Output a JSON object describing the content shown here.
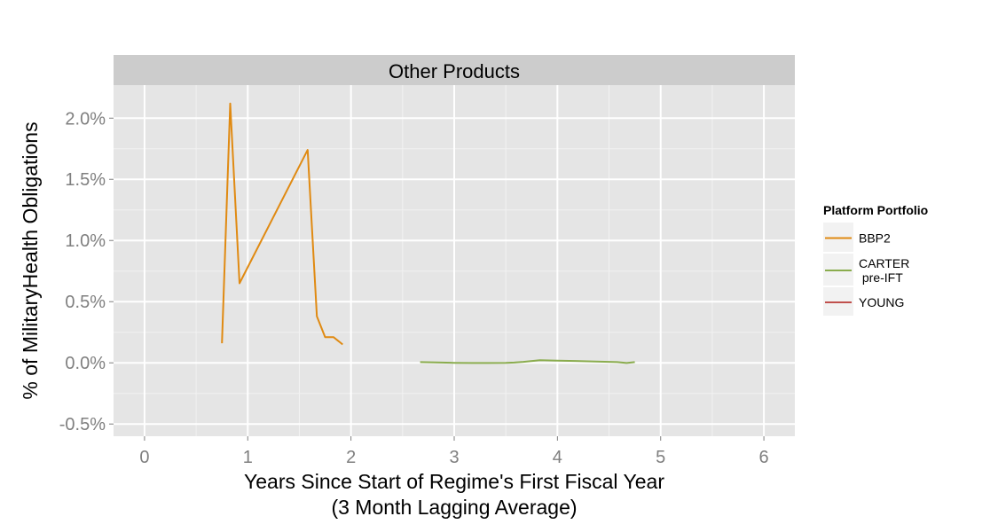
{
  "chart_data": {
    "type": "line",
    "facet_title": "Other Products",
    "xlabel_line1": "Years Since Start of Regime's First Fiscal Year",
    "xlabel_line2": "(3 Month Lagging Average)",
    "ylabel": "% of MilitaryHealth Obligations",
    "xlim": [
      -0.3,
      6.3
    ],
    "ylim": [
      -0.6,
      2.27
    ],
    "x_ticks": [
      0,
      1,
      2,
      3,
      4,
      5,
      6
    ],
    "y_ticks": [
      -0.5,
      0.0,
      0.5,
      1.0,
      1.5,
      2.0
    ],
    "y_tick_labels": [
      "-0.5%",
      "0.0%",
      "0.5%",
      "1.0%",
      "1.5%",
      "2.0%"
    ],
    "grid": true,
    "legend": {
      "title": "Platform Portfolio",
      "placement": "right",
      "entries": [
        {
          "label_lines": [
            "BBP2"
          ],
          "color": "#e08a12"
        },
        {
          "label_lines": [
            "CARTER",
            " pre-IFT"
          ],
          "color": "#8aac4e"
        },
        {
          "label_lines": [
            "YOUNG"
          ],
          "color": "#c0504d"
        }
      ]
    },
    "series": [
      {
        "name": "BBP2",
        "color": "#e08a12",
        "x": [
          0.75,
          0.83,
          0.92,
          1.58,
          1.67,
          1.75,
          1.83,
          1.92
        ],
        "y": [
          0.16,
          2.12,
          0.65,
          1.74,
          0.38,
          0.21,
          0.21,
          0.15
        ]
      },
      {
        "name": "CARTER pre-IFT",
        "color": "#8aac4e",
        "x": [
          2.67,
          2.83,
          3.0,
          3.17,
          3.33,
          3.5,
          3.58,
          3.67,
          3.83,
          4.0,
          4.17,
          4.33,
          4.5,
          4.58,
          4.67,
          4.75
        ],
        "y": [
          0.006,
          0.004,
          0.0,
          -0.001,
          -0.001,
          0.0,
          0.002,
          0.008,
          0.022,
          0.018,
          0.015,
          0.012,
          0.008,
          0.006,
          -0.001,
          0.006
        ]
      },
      {
        "name": "YOUNG",
        "color": "#c0504d",
        "x": [],
        "y": []
      }
    ]
  }
}
